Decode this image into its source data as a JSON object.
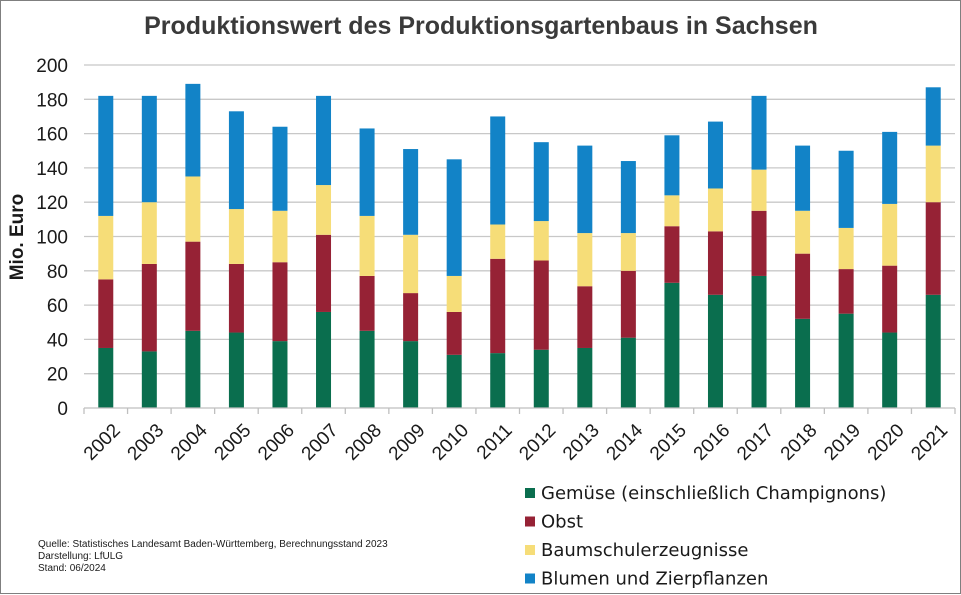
{
  "chart_data": {
    "type": "bar",
    "stacked": true,
    "title": "Produktionswert des Produktionsgartenbaus in Sachsen",
    "ylabel": "Mio. Euro",
    "xlabel": "",
    "ylim": [
      0,
      200
    ],
    "yticks": [
      0,
      20,
      40,
      60,
      80,
      100,
      120,
      140,
      160,
      180,
      200
    ],
    "grid": true,
    "legend_position": "bottom-right",
    "categories": [
      "2002",
      "2003",
      "2004",
      "2005",
      "2006",
      "2007",
      "2008",
      "2009",
      "2010",
      "2011",
      "2012",
      "2013",
      "2014",
      "2015",
      "2016",
      "2017",
      "2018",
      "2019",
      "2020",
      "2021"
    ],
    "series": [
      {
        "name": "Gemüse (einschließlich Champignons)",
        "color": "#0a6e4e",
        "values": [
          35,
          33,
          45,
          44,
          39,
          56,
          45,
          39,
          31,
          32,
          34,
          35,
          41,
          73,
          66,
          77,
          52,
          55,
          44,
          66
        ]
      },
      {
        "name": "Obst",
        "color": "#962235",
        "values": [
          40,
          51,
          52,
          40,
          46,
          45,
          32,
          28,
          25,
          55,
          52,
          36,
          39,
          33,
          37,
          38,
          38,
          26,
          39,
          54
        ]
      },
      {
        "name": "Baumschulerzeugnisse",
        "color": "#f6dd78",
        "values": [
          37,
          36,
          38,
          32,
          30,
          29,
          35,
          34,
          21,
          20,
          23,
          31,
          22,
          18,
          25,
          24,
          25,
          24,
          36,
          33
        ]
      },
      {
        "name": "Blumen und Zierpflanzen",
        "color": "#1283c7",
        "values": [
          70,
          62,
          54,
          57,
          49,
          52,
          51,
          50,
          68,
          63,
          46,
          51,
          42,
          35,
          39,
          43,
          38,
          45,
          42,
          34
        ]
      }
    ]
  },
  "notes": {
    "source": "Quelle:  Statistisches Landesamt Baden-Württemberg, Berechnungsstand 2023",
    "credit": "Darstellung: LfULG",
    "date": "Stand: 06/2024"
  }
}
